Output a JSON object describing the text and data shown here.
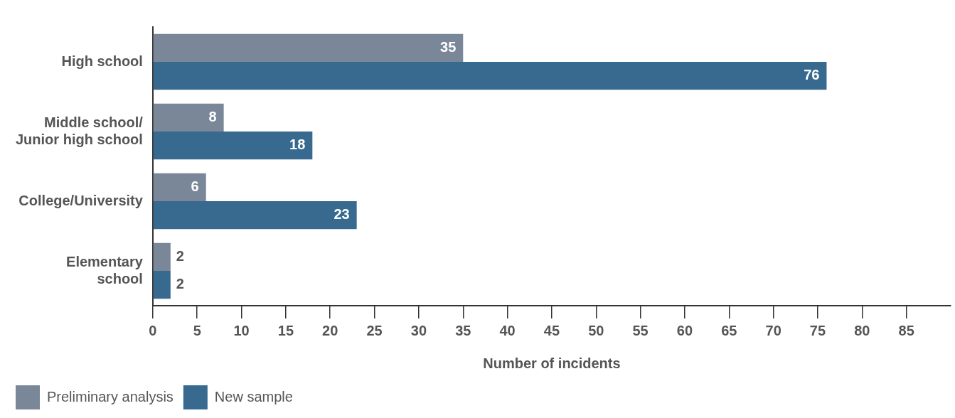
{
  "chart_data": {
    "type": "bar",
    "orientation": "horizontal",
    "xlabel": "Number of incidents",
    "categories": [
      "High school",
      "Middle school/\nJunior high school",
      "College/University",
      "Elementary\nschool"
    ],
    "series": [
      {
        "name": "Preliminary analysis",
        "color": "#7a8799",
        "values": [
          35,
          8,
          6,
          2
        ]
      },
      {
        "name": "New sample",
        "color": "#376a8e",
        "values": [
          76,
          18,
          23,
          2
        ]
      }
    ],
    "xlim": [
      0,
      90
    ],
    "xticks": [
      0,
      5,
      10,
      15,
      20,
      25,
      30,
      35,
      40,
      45,
      50,
      55,
      60,
      65,
      70,
      75,
      80,
      85
    ],
    "grid": false,
    "legend": "bottom left",
    "data_labels": true
  }
}
